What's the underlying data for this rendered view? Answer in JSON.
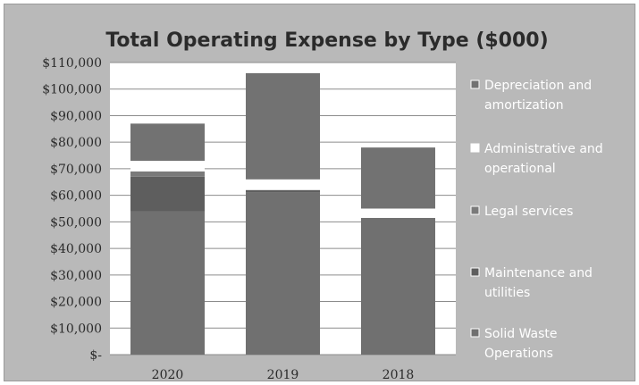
{
  "chart_data": {
    "type": "bar",
    "stacked": true,
    "title": "Total Operating Expense by Type ($000)",
    "xlabel": "",
    "ylabel": "",
    "categories": [
      "2020",
      "2019",
      "2018"
    ],
    "y_tick_labels": [
      "$-",
      "$10,000",
      "$20,000",
      "$30,000",
      "$40,000",
      "$50,000",
      "$60,000",
      "$70,000",
      "$80,000",
      "$90,000",
      "$100,000",
      "$110,000"
    ],
    "ylim": [
      0,
      110000
    ],
    "grid": true,
    "legend_position": "right",
    "series": [
      {
        "name": "Solid Waste Operations",
        "color": "#707070",
        "values": [
          54000,
          61000,
          51500
        ]
      },
      {
        "name": "Maintenance and utilities",
        "color": "#5e5e5e",
        "values": [
          13000,
          1000,
          0
        ]
      },
      {
        "name": "Legal services",
        "color": "#7a7a7a",
        "values": [
          2000,
          0,
          0
        ]
      },
      {
        "name": "Administrative and operational",
        "color": "#ffffff",
        "values": [
          4000,
          4000,
          3500
        ]
      },
      {
        "name": "Depreciation and amortization",
        "color": "#727272",
        "values": [
          14000,
          40000,
          23000
        ]
      }
    ],
    "legend_order": [
      4,
      3,
      2,
      1,
      0
    ],
    "legend_labels": [
      [
        "Depreciation and",
        "amortization"
      ],
      [
        "Administrative and",
        "operational"
      ],
      [
        "Legal services"
      ],
      [
        "Maintenance and",
        "utilities"
      ],
      [
        "Solid Waste",
        "Operations"
      ]
    ],
    "colors": {
      "frame": "#b9b9b9",
      "plot": "#ffffff",
      "grid": "#8c8c8c"
    }
  }
}
